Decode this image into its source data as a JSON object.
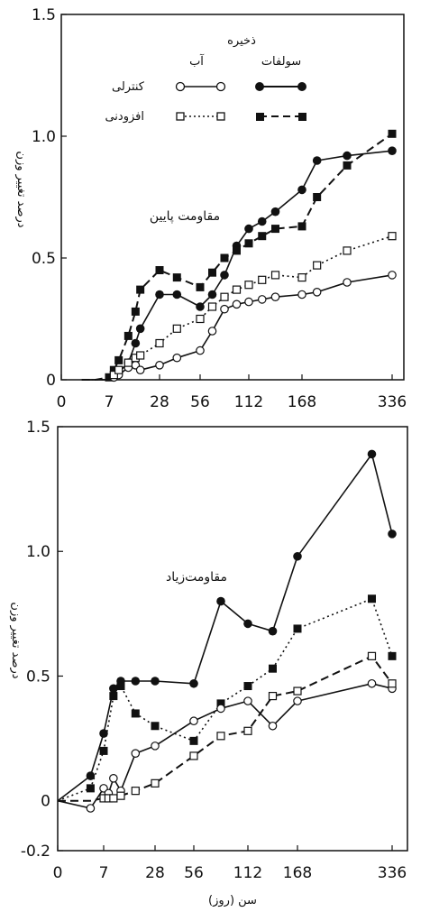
{
  "chart_data": [
    {
      "type": "line",
      "title": "",
      "annotation": "مقاومت پایین",
      "ylabel": "درصد تغییر وزن",
      "xlabel": "",
      "xticks": [
        "0",
        "7",
        "28",
        "56",
        "112",
        "168",
        "336"
      ],
      "yticks": [
        "0",
        "0.5",
        "1.0",
        "1.5"
      ],
      "ylim": [
        0,
        1.5
      ],
      "legend": {
        "group_title": "ذخیره",
        "col_water": "آب",
        "col_sulfate": "سولفات",
        "row_control": "کنترلی",
        "row_additive": "افزودنی"
      },
      "series": [
        {
          "key": "sulfate_control",
          "marker": "filled-circle",
          "line": "solid",
          "x": [
            3,
            5,
            7,
            9,
            11,
            15,
            18,
            20,
            28,
            40,
            56,
            70,
            84,
            98,
            112,
            126,
            140,
            168,
            196,
            252,
            336
          ],
          "y": [
            0,
            0,
            0,
            0.02,
            0.03,
            0.07,
            0.15,
            0.21,
            0.35,
            0.35,
            0.3,
            0.35,
            0.43,
            0.55,
            0.62,
            0.65,
            0.69,
            0.78,
            0.9,
            0.92,
            0.94
          ]
        },
        {
          "key": "sulfate_additive",
          "marker": "filled-square",
          "line": "dashed",
          "x": [
            3,
            5,
            7,
            9,
            11,
            15,
            18,
            20,
            28,
            40,
            56,
            70,
            84,
            98,
            112,
            126,
            140,
            168,
            196,
            252,
            336
          ],
          "y": [
            0,
            0,
            0.01,
            0.04,
            0.08,
            0.18,
            0.28,
            0.37,
            0.45,
            0.42,
            0.38,
            0.44,
            0.5,
            0.53,
            0.56,
            0.59,
            0.62,
            0.63,
            0.75,
            0.88,
            1.01
          ]
        },
        {
          "key": "water_control",
          "marker": "open-circle",
          "line": "solid",
          "x": [
            3,
            5,
            7,
            9,
            11,
            15,
            18,
            20,
            28,
            40,
            56,
            70,
            84,
            98,
            112,
            126,
            140,
            168,
            196,
            252,
            336
          ],
          "y": [
            0,
            0,
            0,
            0.01,
            0.02,
            0.05,
            0.06,
            0.04,
            0.06,
            0.09,
            0.12,
            0.2,
            0.29,
            0.31,
            0.32,
            0.33,
            0.34,
            0.35,
            0.36,
            0.4,
            0.43
          ]
        },
        {
          "key": "water_additive",
          "marker": "open-square",
          "line": "dotted",
          "x": [
            3,
            5,
            7,
            9,
            11,
            15,
            18,
            20,
            28,
            40,
            56,
            70,
            84,
            98,
            112,
            126,
            140,
            168,
            196,
            252,
            336
          ],
          "y": [
            0,
            0,
            0,
            0.02,
            0.04,
            0.07,
            0.09,
            0.1,
            0.15,
            0.21,
            0.25,
            0.3,
            0.34,
            0.37,
            0.39,
            0.41,
            0.43,
            0.42,
            0.47,
            0.53,
            0.59
          ]
        }
      ]
    },
    {
      "type": "line",
      "title": "",
      "annotation": "مقاومت‌زیاد",
      "ylabel": "درصد تغییر وزن",
      "xlabel": "سن (روز)",
      "xticks": [
        "0",
        "7",
        "28",
        "56",
        "112",
        "168",
        "336"
      ],
      "yticks": [
        "-0.2",
        "0",
        "0.5",
        "1.0",
        "1.5"
      ],
      "ylim": [
        -0.2,
        1.5
      ],
      "series": [
        {
          "key": "sulfate_control",
          "marker": "filled-circle",
          "line": "solid",
          "x": [
            0,
            5,
            7,
            11,
            14,
            20,
            28,
            56,
            84,
            112,
            140,
            168,
            300,
            336
          ],
          "y": [
            0,
            0.1,
            0.27,
            0.45,
            0.48,
            0.48,
            0.48,
            0.47,
            0.8,
            0.71,
            0.68,
            0.98,
            1.39,
            1.07
          ]
        },
        {
          "key": "sulfate_additive",
          "marker": "filled-square",
          "line": "dotted",
          "x": [
            0,
            5,
            7,
            11,
            14,
            20,
            28,
            56,
            84,
            112,
            140,
            168,
            300,
            336
          ],
          "y": [
            0,
            0.05,
            0.2,
            0.42,
            0.46,
            0.35,
            0.3,
            0.24,
            0.39,
            0.46,
            0.53,
            0.69,
            0.81,
            0.58
          ]
        },
        {
          "key": "water_control",
          "marker": "open-circle",
          "line": "solid",
          "x": [
            0,
            5,
            7,
            9,
            11,
            14,
            20,
            28,
            56,
            84,
            112,
            140,
            168,
            300,
            336
          ],
          "y": [
            0,
            -0.03,
            0.05,
            0.03,
            0.09,
            0.04,
            0.19,
            0.22,
            0.32,
            0.37,
            0.4,
            0.3,
            0.4,
            0.47,
            0.45
          ]
        },
        {
          "key": "water_additive",
          "marker": "open-square",
          "line": "dashed",
          "x": [
            0,
            5,
            7,
            9,
            11,
            14,
            20,
            28,
            56,
            84,
            112,
            140,
            168,
            300,
            336
          ],
          "y": [
            0,
            0,
            0.01,
            0.01,
            0.01,
            0.02,
            0.04,
            0.07,
            0.18,
            0.26,
            0.28,
            0.42,
            0.44,
            0.58,
            0.47
          ]
        }
      ]
    }
  ]
}
